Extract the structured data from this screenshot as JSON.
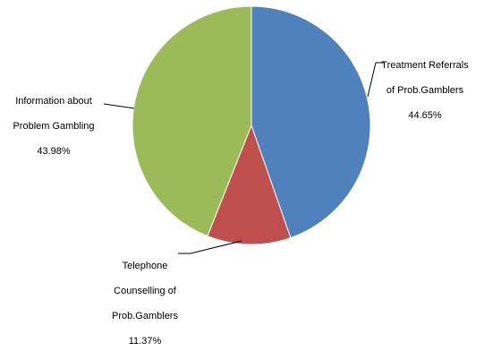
{
  "chart_data": {
    "type": "pie",
    "title": "",
    "slices": [
      {
        "name": "Treatment Referrals of Prob.Gamblers",
        "label_lines": [
          "Treatment Referrals",
          "of Prob.Gamblers"
        ],
        "percent_label": "44.65%",
        "value": 44.65,
        "color": "#4f81bd"
      },
      {
        "name": "Telephone Counselling of Prob.Gamblers",
        "label_lines": [
          "Telephone",
          "Counselling of",
          "Prob.Gamblers"
        ],
        "percent_label": "11.37%",
        "value": 11.37,
        "color": "#c0504d"
      },
      {
        "name": "Information about Problem Gambling",
        "label_lines": [
          "Information about",
          "Problem Gambling"
        ],
        "percent_label": "43.98%",
        "value": 43.98,
        "color": "#9bbb59"
      }
    ],
    "legend": "none"
  }
}
